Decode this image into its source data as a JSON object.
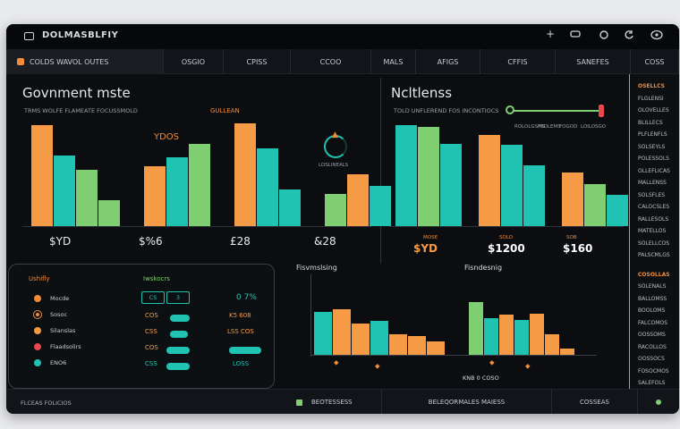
{
  "window": {
    "title": "DOLMASBLFIY"
  },
  "titlebar_icons": [
    "plus-icon",
    "minimize-icon",
    "search-icon",
    "refresh-icon",
    "settings-icon"
  ],
  "tabs": [
    {
      "label": "COLDS WAVOL OUTES",
      "active": true
    },
    {
      "label": "OSGIO"
    },
    {
      "label": "CPISS"
    },
    {
      "label": "CCOO"
    },
    {
      "label": "MALS"
    },
    {
      "label": "AFIGS"
    },
    {
      "label": "CFFIS"
    },
    {
      "label": "SANEFES"
    },
    {
      "label": "COSS"
    }
  ],
  "left_panel": {
    "title": "Govnment mste",
    "subtitle": "TRMS WOLFE  FLAMEATE FOCUSSMOLD",
    "accent_label": "GULLEAN",
    "chart_annotation": "YDOS",
    "ring_caption": "LOSLINEALS",
    "values": [
      "$YD",
      "$%6",
      "£28",
      "&28"
    ]
  },
  "middle_panel": {
    "title": "Ncltlenss",
    "subtitle": "TOLD UNFLEREND FOS INCONTIOCS",
    "slider_labels": [
      "ROLOLGSMS",
      "FSOLEMS",
      "FOGOD",
      "LOILOSGO"
    ],
    "values": [
      "$YD",
      "$1200",
      "$160"
    ],
    "value_tags": [
      "MOSE",
      "SOLD",
      "SOB"
    ]
  },
  "chart_data": [
    {
      "type": "bar",
      "title": "Govnment mste",
      "groups": [
        {
          "values": [
            88,
            62,
            49,
            23
          ]
        },
        {
          "values": [
            52,
            60,
            72
          ]
        },
        {
          "values": [
            90,
            68,
            32
          ]
        },
        {
          "values": [
            28,
            45,
            35
          ]
        }
      ],
      "colors": [
        "#f59a45",
        "#20c2b2",
        "#7fcf72"
      ]
    },
    {
      "type": "bar",
      "title": "Ncltlenss",
      "groups": [
        {
          "values": [
            88,
            87,
            72
          ]
        },
        {
          "values": [
            80,
            71,
            53
          ]
        },
        {
          "values": [
            47,
            37,
            27
          ]
        }
      ],
      "colors": [
        "#20c2b2",
        "#7fcf72",
        "#f59a45"
      ]
    },
    {
      "type": "bar",
      "title": "Fisvmslsing",
      "values": [
        58,
        62,
        43,
        46,
        28,
        26,
        18
      ],
      "colors": [
        "#20c2b2",
        "#f59a45",
        "#f59a45",
        "#20c2b2",
        "#f59a45",
        "#f59a45",
        "#f59a45"
      ]
    },
    {
      "type": "bar",
      "title": "Fisndesnig",
      "values": [
        72,
        50,
        55,
        48,
        56,
        28,
        8
      ],
      "colors": [
        "#7fcf72",
        "#20c2b2",
        "#f59a45",
        "#20c2b2",
        "#f59a45",
        "#f59a45",
        "#f59a45"
      ]
    }
  ],
  "legend_card": {
    "title": "Ushifly",
    "col2_title": "Iwskocrs",
    "items": [
      {
        "label": "Mocde",
        "color": "#f28c38"
      },
      {
        "label": "Sosoc",
        "color": "#f28c38"
      },
      {
        "label": "Silanslas",
        "color": "#f59a45"
      },
      {
        "label": "Flaadsolirs",
        "color": "#e5484d"
      },
      {
        "label": "ENO6",
        "color": "#20c2b2"
      }
    ],
    "box_labels": [
      "CS",
      "3"
    ],
    "col3_values": [
      "0 7%",
      "K5 608",
      "LSS COS",
      "LOSS"
    ],
    "pill_labels": [
      "COS",
      "CSS",
      "COS",
      "CSS"
    ]
  },
  "lower_right": {
    "chart_a_title": "Fisvmslsing",
    "chart_b_title": "Fisndesnig",
    "caption": "KNB 0 COSO"
  },
  "sidebar": {
    "head_a": "OSELLCS",
    "items_a": [
      "FLGLENSI",
      "OLOVELLES",
      "BLILLECS",
      "PLFLENFLS",
      "SOLSEYLS",
      "POLESSOLS",
      "OLLEFLICAS",
      "MALLENSS",
      "SOLSFLES",
      "CALOCSLES",
      "RALLESOLS",
      "MATELLOS",
      "SOLELLCOS",
      "PALSCMLGS"
    ],
    "head_b": "COSOLLAS",
    "items_b": [
      "SOLENALS",
      "BALLOMSS",
      "BOOLOMS",
      "FALCOMOS",
      "OOSSOMS",
      "RACOLLOS",
      "OOSSOCS",
      "FOSOCMOS",
      "SALEFOLS"
    ]
  },
  "bottom_bar": {
    "segment_1": "BEOTESSESS",
    "segment_2": "BELEQORMALES MAIESS",
    "segment_3": "COSSEAS",
    "footer_note": "FLCEAS   FOLICIOS"
  }
}
